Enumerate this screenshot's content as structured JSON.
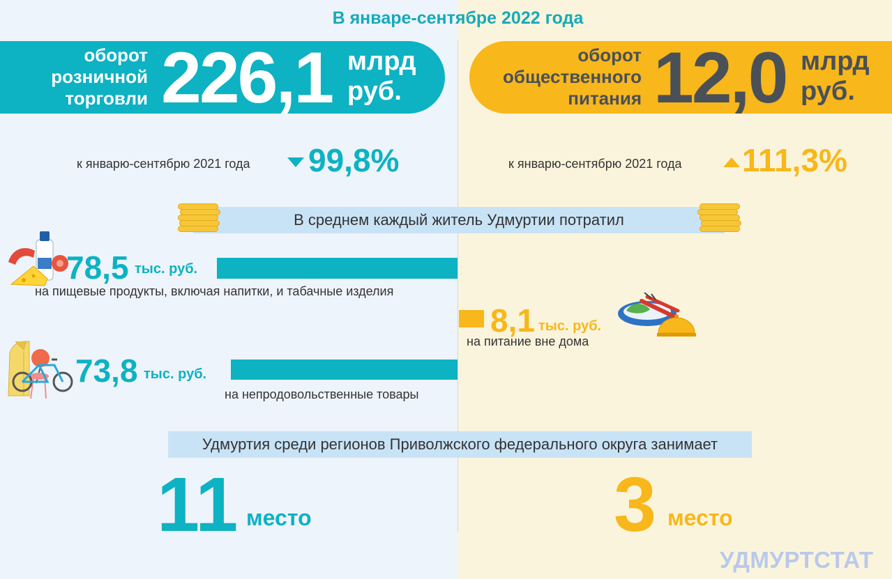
{
  "header": {
    "period": "В январе-сентябре 2022 года"
  },
  "retail": {
    "label_lines": [
      "оборот",
      "розничной",
      "торговли"
    ],
    "value": "226,1",
    "unit_lines": [
      "млрд",
      "руб."
    ],
    "comparison_label": "к январю-сентябрю 2021 года",
    "trend": "down",
    "comparison_value": "99,8%",
    "accent": "#0db2c3"
  },
  "catering": {
    "label_lines": [
      "оборот",
      "общественного",
      "питания"
    ],
    "value": "12,0",
    "unit_lines": [
      "млрд",
      "руб."
    ],
    "comparison_label": "к январю-сентябрю 2021 года",
    "trend": "up",
    "comparison_value": "111,3%",
    "accent": "#f8b71a"
  },
  "spending": {
    "title": "В среднем каждый житель Удмуртии потратил",
    "items": [
      {
        "value": "78,5",
        "unit": "тыс. руб.",
        "description": "на пищевые продукты, включая напитки, и табачные изделия",
        "icon": "food-icon",
        "amount": 78.5
      },
      {
        "value": "73,8",
        "unit": "тыс. руб.",
        "description": "на непродовольственные товары",
        "icon": "goods-icon",
        "amount": 73.8
      },
      {
        "value": "8,1",
        "unit": "тыс. руб.",
        "description": "на питание вне дома",
        "icon": "dish-icon",
        "amount": 8.1
      }
    ]
  },
  "ranking": {
    "title": "Удмуртия среди регионов Приволжского федерального округа занимает",
    "retail_place": "11",
    "catering_place": "3",
    "place_word": "место"
  },
  "footer": {
    "brand": "УДМУРТСТАТ"
  }
}
